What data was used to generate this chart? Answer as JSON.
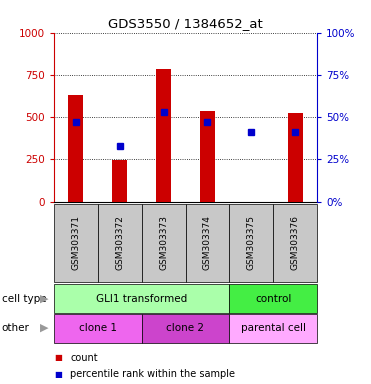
{
  "title": "GDS3550 / 1384652_at",
  "samples": [
    "GSM303371",
    "GSM303372",
    "GSM303373",
    "GSM303374",
    "GSM303375",
    "GSM303376"
  ],
  "counts": [
    630,
    248,
    783,
    535,
    0,
    525
  ],
  "percentile_ranks": [
    47,
    33,
    53,
    47,
    41,
    41
  ],
  "ylim_left": [
    0,
    1000
  ],
  "ylim_right": [
    0,
    100
  ],
  "yticks_left": [
    0,
    250,
    500,
    750,
    1000
  ],
  "yticks_right": [
    0,
    25,
    50,
    75,
    100
  ],
  "bar_color": "#cc0000",
  "dot_color": "#0000cc",
  "bar_width": 0.35,
  "cell_type_groups": [
    {
      "label": "GLI1 transformed",
      "span": [
        0,
        4
      ],
      "color": "#aaffaa"
    },
    {
      "label": "control",
      "span": [
        4,
        6
      ],
      "color": "#44ee44"
    }
  ],
  "other_groups": [
    {
      "label": "clone 1",
      "span": [
        0,
        2
      ],
      "color": "#ee66ee"
    },
    {
      "label": "clone 2",
      "span": [
        2,
        4
      ],
      "color": "#cc44cc"
    },
    {
      "label": "parental cell",
      "span": [
        4,
        6
      ],
      "color": "#ffaaff"
    }
  ],
  "cell_type_label": "cell type",
  "other_label": "other",
  "legend_count_label": "count",
  "legend_pct_label": "percentile rank within the sample",
  "tick_color_left": "#cc0000",
  "tick_color_right": "#0000cc",
  "bg_color": "#ffffff",
  "sample_bg_color": "#c8c8c8"
}
